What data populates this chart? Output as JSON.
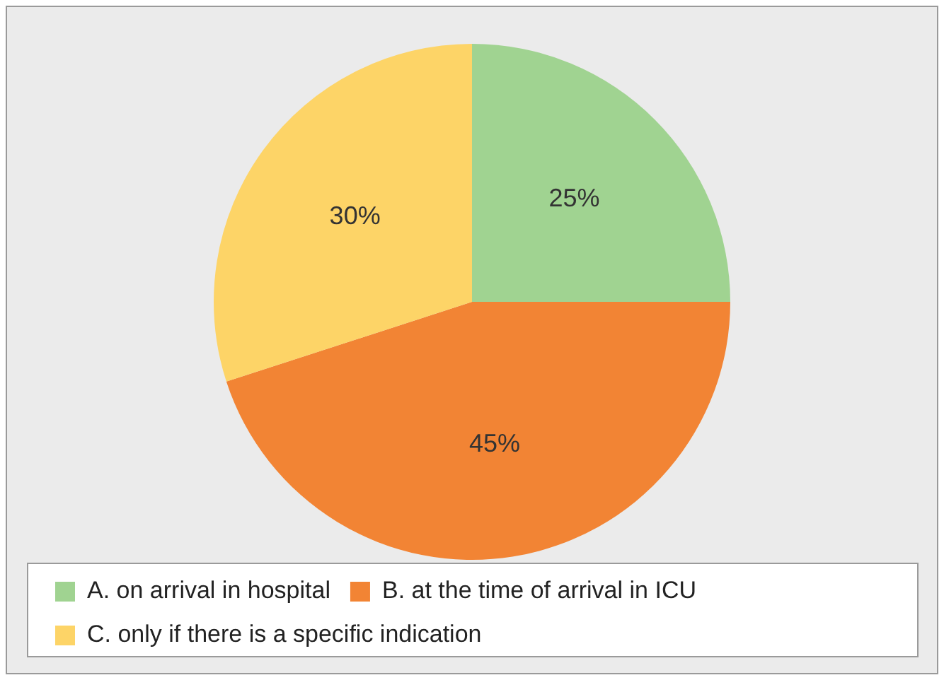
{
  "chart_data": {
    "type": "pie",
    "categories": [
      "A. on arrival in hospital",
      "B. at the time of arrival in ICU",
      "C. only if there is a specific indication"
    ],
    "values": [
      25,
      45,
      30
    ],
    "colors": [
      "#a0d391",
      "#f28434",
      "#fdd467"
    ],
    "value_labels": [
      "25%",
      "45%",
      "30%"
    ],
    "legend": "bottom"
  }
}
